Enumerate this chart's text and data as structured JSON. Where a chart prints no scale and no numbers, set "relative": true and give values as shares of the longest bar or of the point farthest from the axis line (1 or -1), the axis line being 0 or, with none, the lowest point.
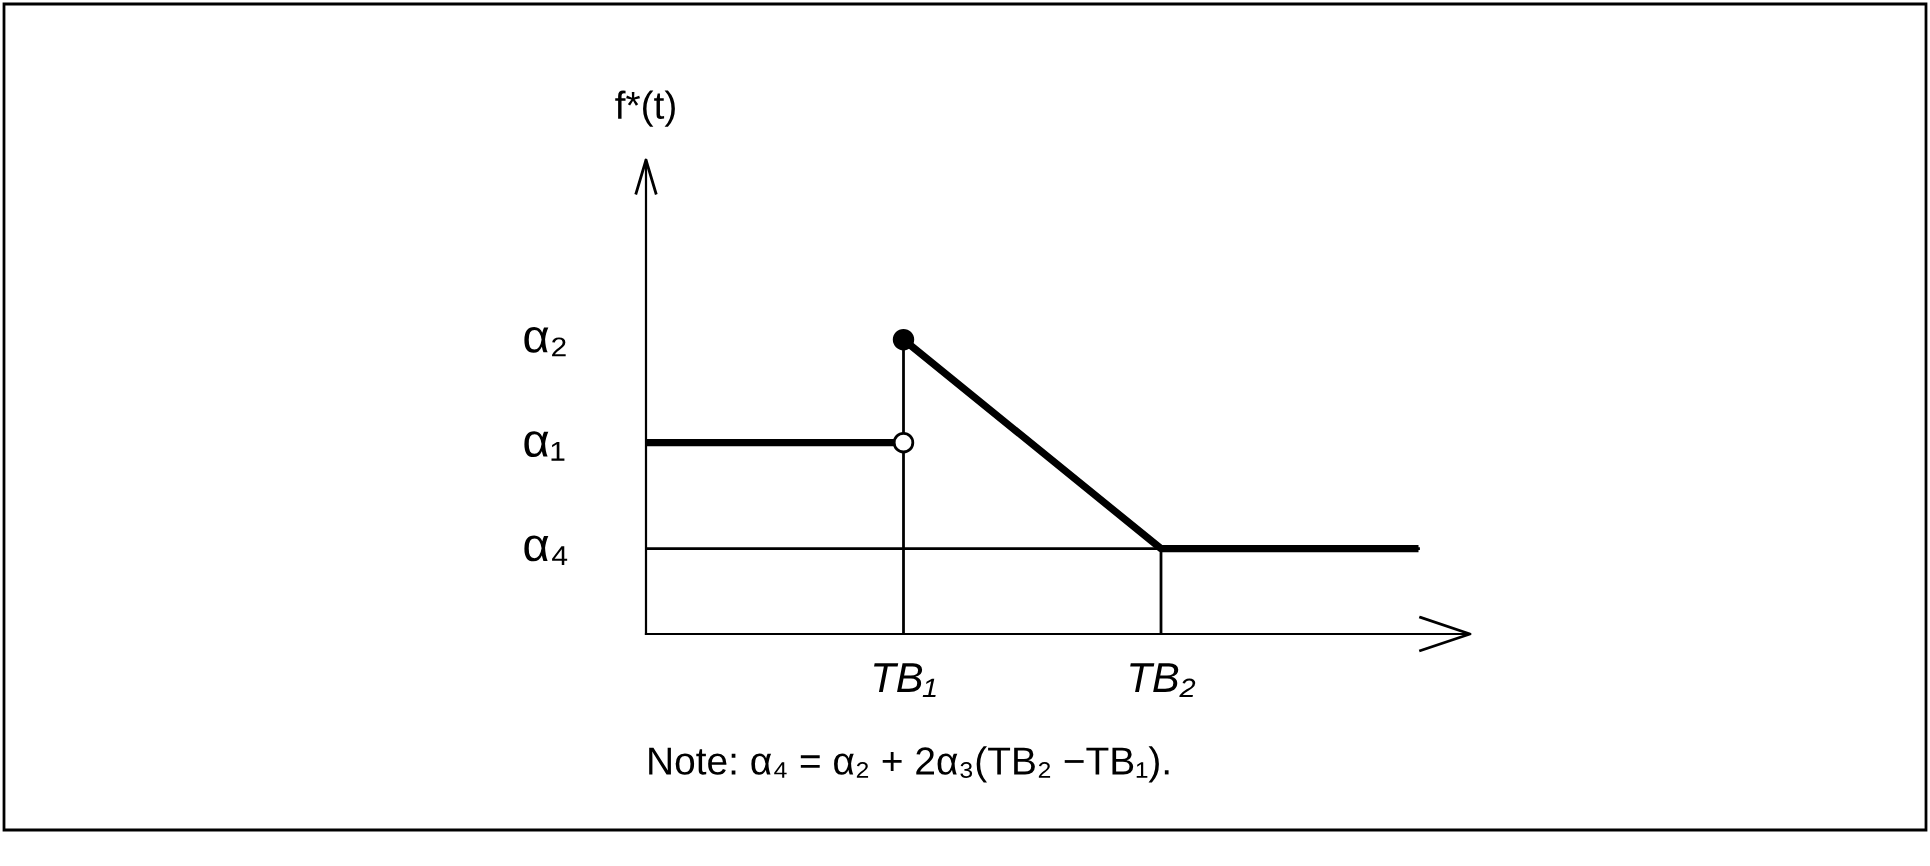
{
  "chart_data": {
    "type": "line",
    "relative": true,
    "categories": [
      null,
      "TB₁",
      "TB₂",
      null
    ],
    "grid": false,
    "legend": false,
    "series": [
      {
        "color": "#000000",
        "values": [
          0.65,
          0.65,
          null,
          null
        ]
      },
      {
        "color": "#000000",
        "values": [
          null,
          1,
          0.29,
          0.29
        ]
      },
      {
        "type": "step",
        "color": "#000000",
        "x": [
          "TB₁",
          "TB₁"
        ],
        "values": [
          0,
          1
        ]
      },
      {
        "type": "step",
        "color": "#000000",
        "x": [
          "TB₂",
          "TB₂"
        ],
        "values": [
          0,
          0.29
        ]
      },
      {
        "type": "scatter",
        "color": "#ffffff",
        "x": [
          "TB₁"
        ],
        "values": [
          0.65
        ]
      },
      {
        "type": "scatter",
        "color": "#000000",
        "x": [
          "TB₁"
        ],
        "values": [
          1
        ]
      }
    ],
    "ref_lines": [
      {
        "axis": "y",
        "value": 0.29,
        "color": "#000000"
      }
    ],
    "annotations": [
      "f*(t)",
      "α₂",
      "α₁",
      "α₄",
      "Note: α₄ = α₂ + 2α₃(TB₂ −TB₁)."
    ]
  }
}
